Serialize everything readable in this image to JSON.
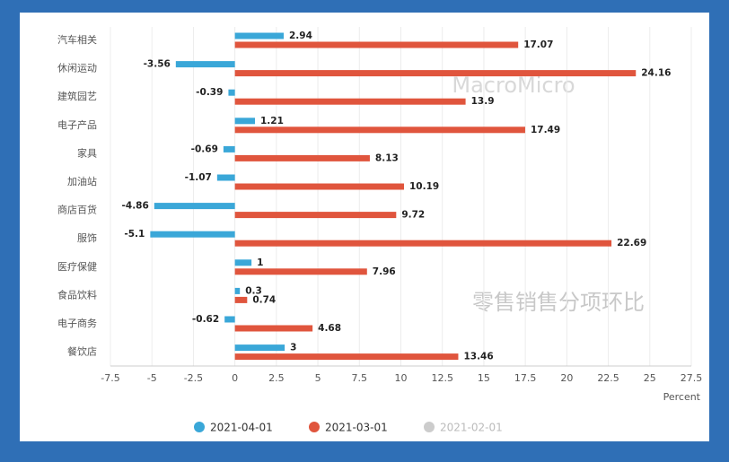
{
  "chart_data": {
    "type": "hbar",
    "title": "零售销售分项环比",
    "watermark": "MacroMicro",
    "x_label": "Percent",
    "categories": [
      "汽车相关",
      "休闲运动",
      "建筑园艺",
      "电子产品",
      "家具",
      "加油站",
      "商店百货",
      "服饰",
      "医疗保健",
      "食品饮料",
      "电子商务",
      "餐饮店"
    ],
    "series": [
      {
        "name": "2021-04-01",
        "color": "#3aa7d8",
        "values": [
          2.94,
          -3.56,
          -0.39,
          1.21,
          -0.69,
          -1.07,
          -4.86,
          -5.1,
          1,
          0.3,
          -0.62,
          3
        ]
      },
      {
        "name": "2021-03-01",
        "color": "#e0553d",
        "values": [
          17.07,
          24.16,
          13.9,
          17.49,
          8.13,
          10.19,
          9.72,
          22.69,
          7.96,
          0.74,
          4.68,
          13.46
        ]
      },
      {
        "name": "2021-02-01",
        "color": "#cccccc",
        "hidden": true
      }
    ],
    "xlim": [
      -7.5,
      27.5
    ],
    "xticks": [
      -7.5,
      -5,
      -2.5,
      0,
      2.5,
      5,
      7.5,
      10,
      12.5,
      15,
      17.5,
      20,
      22.5,
      25,
      27.5
    ],
    "grid": true,
    "legend": "bottom"
  }
}
